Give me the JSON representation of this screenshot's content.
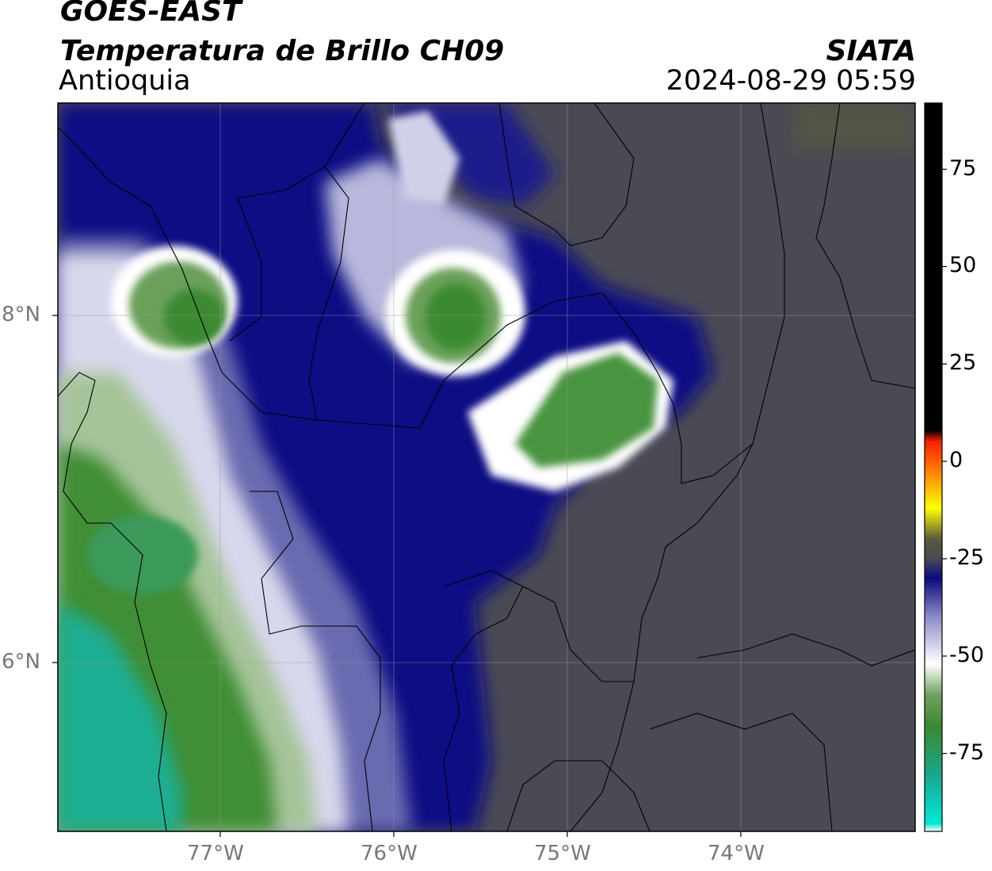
{
  "header": {
    "satellite": "GOES-EAST",
    "product": "Temperatura de Brillo CH09",
    "region": "Antioquia",
    "agency": "SIATA",
    "datetime": "2024-08-29 05:59"
  },
  "map": {
    "lon_range": [
      -77.95,
      -73.05
    ],
    "lat_range": [
      4.95,
      9.15
    ],
    "lon_ticks": [
      {
        "value": -77,
        "label": "77°W"
      },
      {
        "value": -76,
        "label": "76°W"
      },
      {
        "value": -75,
        "label": "75°W"
      },
      {
        "value": -74,
        "label": "74°W"
      }
    ],
    "lat_ticks": [
      {
        "value": 8,
        "label": "8°N"
      },
      {
        "value": 6,
        "label": "6°N"
      }
    ],
    "gridlines": true,
    "background_color": "#4a4a55",
    "border_color": "#000000"
  },
  "colorbar": {
    "ticks": [
      {
        "value": 75,
        "label": "75"
      },
      {
        "value": 50,
        "label": "50"
      },
      {
        "value": 25,
        "label": "25"
      },
      {
        "value": 0,
        "label": "0"
      },
      {
        "value": -25,
        "label": "-25"
      },
      {
        "value": -50,
        "label": "-50"
      },
      {
        "value": -75,
        "label": "-75"
      }
    ],
    "range": [
      -95,
      92
    ],
    "stops": [
      {
        "value": -95,
        "color": "#ffffff"
      },
      {
        "value": -93,
        "color": "#00e8d8"
      },
      {
        "value": -80,
        "color": "#1aa58a"
      },
      {
        "value": -68,
        "color": "#3b8a2e"
      },
      {
        "value": -60,
        "color": "#6ea25e"
      },
      {
        "value": -52,
        "color": "#ffffff"
      },
      {
        "value": -40,
        "color": "#8c8cc8"
      },
      {
        "value": -30,
        "color": "#0a0a80"
      },
      {
        "value": -25,
        "color": "#4a4a55"
      },
      {
        "value": -20,
        "color": "#5a5a3a"
      },
      {
        "value": -12,
        "color": "#ffff00"
      },
      {
        "value": -5,
        "color": "#ffa000"
      },
      {
        "value": 5,
        "color": "#ff2000"
      },
      {
        "value": 8,
        "color": "#000000"
      },
      {
        "value": 92,
        "color": "#000000"
      }
    ]
  }
}
